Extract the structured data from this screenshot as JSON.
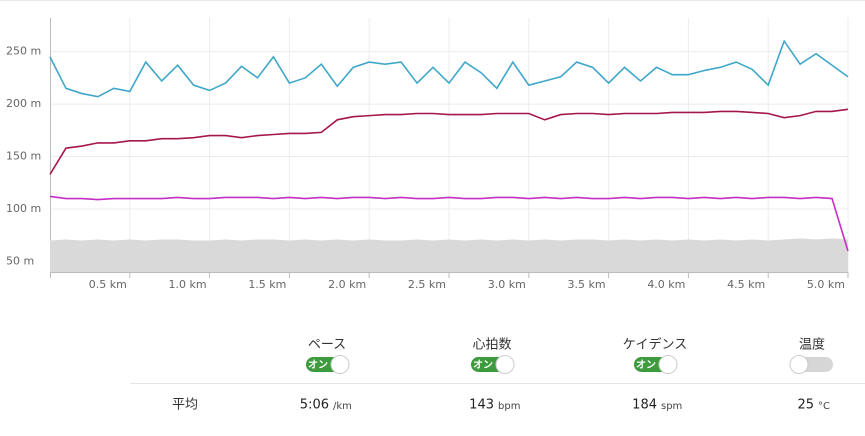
{
  "chart_data": {
    "type": "line",
    "x": [
      0,
      0.1,
      0.2,
      0.3,
      0.4,
      0.5,
      0.6,
      0.7,
      0.8,
      0.9,
      1.0,
      1.1,
      1.2,
      1.3,
      1.4,
      1.5,
      1.6,
      1.7,
      1.8,
      1.9,
      2.0,
      2.1,
      2.2,
      2.3,
      2.4,
      2.5,
      2.6,
      2.7,
      2.8,
      2.9,
      3.0,
      3.1,
      3.2,
      3.3,
      3.4,
      3.5,
      3.6,
      3.7,
      3.8,
      3.9,
      4.0,
      4.1,
      4.2,
      4.3,
      4.4,
      4.5,
      4.6,
      4.7,
      4.8,
      4.9,
      5.0
    ],
    "series": [
      {
        "type": "area",
        "color": "#d9d9d9",
        "values": [
          70,
          71,
          70,
          71,
          70,
          71,
          70,
          71,
          71,
          70,
          70,
          71,
          70,
          71,
          71,
          70,
          71,
          70,
          71,
          70,
          71,
          70,
          70,
          71,
          70,
          71,
          70,
          71,
          70,
          71,
          70,
          71,
          70,
          71,
          71,
          70,
          71,
          70,
          71,
          70,
          71,
          70,
          71,
          70,
          71,
          70,
          71,
          72,
          71,
          72,
          71
        ]
      },
      {
        "name": "ペース",
        "color": "#3fa7c9",
        "values": [
          245,
          215,
          210,
          207,
          215,
          212,
          240,
          222,
          237,
          218,
          213,
          220,
          236,
          225,
          245,
          220,
          225,
          238,
          217,
          235,
          240,
          238,
          240,
          220,
          235,
          220,
          240,
          230,
          215,
          240,
          218,
          222,
          226,
          240,
          235,
          220,
          235,
          222,
          235,
          228,
          228,
          232,
          235,
          240,
          233,
          218,
          260,
          238,
          248,
          237,
          226
        ]
      },
      {
        "name": "心拍数",
        "color": "#a5174c",
        "values": [
          133,
          158,
          160,
          163,
          163,
          165,
          165,
          167,
          167,
          168,
          170,
          170,
          168,
          170,
          171,
          172,
          172,
          173,
          185,
          188,
          189,
          190,
          190,
          191,
          191,
          190,
          190,
          190,
          191,
          191,
          191,
          185,
          190,
          191,
          191,
          190,
          191,
          191,
          191,
          192,
          192,
          192,
          193,
          193,
          192,
          191,
          187,
          189,
          193,
          193,
          195
        ]
      },
      {
        "name": "ケイデンス",
        "color": "#c62fc6",
        "values": [
          112,
          110,
          110,
          109,
          110,
          110,
          110,
          110,
          111,
          110,
          110,
          111,
          111,
          111,
          110,
          111,
          110,
          111,
          110,
          111,
          111,
          110,
          111,
          110,
          110,
          111,
          110,
          110,
          111,
          111,
          110,
          111,
          110,
          111,
          110,
          110,
          111,
          110,
          111,
          111,
          110,
          111,
          110,
          111,
          110,
          111,
          111,
          110,
          111,
          110,
          60
        ]
      }
    ],
    "xlim": [
      0,
      5.0
    ],
    "ylim": [
      40,
      282
    ],
    "xticks": [
      {
        "value": 0.5,
        "label": "0.5 km"
      },
      {
        "value": 1.0,
        "label": "1.0 km"
      },
      {
        "value": 1.5,
        "label": "1.5 km"
      },
      {
        "value": 2.0,
        "label": "2.0 km"
      },
      {
        "value": 2.5,
        "label": "2.5 km"
      },
      {
        "value": 3.0,
        "label": "3.0 km"
      },
      {
        "value": 3.5,
        "label": "3.5 km"
      },
      {
        "value": 4.0,
        "label": "4.0 km"
      },
      {
        "value": 4.5,
        "label": "4.5 km"
      },
      {
        "value": 5.0,
        "label": "5.0 km"
      }
    ],
    "yticks": [
      {
        "value": 50,
        "label": "50 m"
      },
      {
        "value": 100,
        "label": "100 m"
      },
      {
        "value": 150,
        "label": "150 m"
      },
      {
        "value": 200,
        "label": "200 m"
      },
      {
        "value": 250,
        "label": "250 m"
      }
    ],
    "grid": true
  },
  "toggles": [
    {
      "label": "ペース",
      "on": true,
      "state": "オン"
    },
    {
      "label": "心拍数",
      "on": true,
      "state": "オン"
    },
    {
      "label": "ケイデンス",
      "on": true,
      "state": "オン"
    },
    {
      "label": "温度",
      "on": false
    }
  ],
  "summary": {
    "row_label": "平均",
    "values": [
      {
        "value": "5:06",
        "unit": "/km"
      },
      {
        "value": "143",
        "unit": "bpm"
      },
      {
        "value": "184",
        "unit": "spm"
      },
      {
        "value": "25",
        "unit": "°C"
      }
    ]
  }
}
